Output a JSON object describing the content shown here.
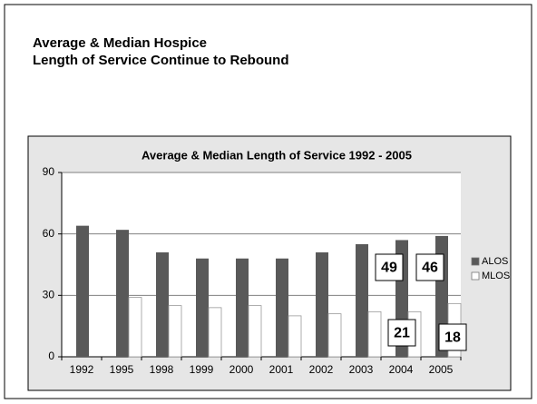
{
  "header": {
    "title_lines": [
      "Average & Median Hospice",
      "Length of Service Continue to Rebound"
    ]
  },
  "chart_data": {
    "type": "bar",
    "title": "Average & Median Length of Service 1992 - 2005",
    "categories": [
      "1992",
      "1995",
      "1998",
      "1999",
      "2000",
      "2001",
      "2002",
      "2003",
      "2004",
      "2005"
    ],
    "series": [
      {
        "name": "ALOS",
        "color": "#595959",
        "values": [
          64,
          62,
          51,
          48,
          48,
          48,
          51,
          55,
          57,
          59
        ]
      },
      {
        "name": "MLOS",
        "color": "#ffffff",
        "values": [
          null,
          29,
          25,
          24,
          25,
          20,
          21,
          22,
          22,
          26
        ]
      }
    ],
    "ylim": [
      0,
      90
    ],
    "yticks": [
      0,
      30,
      60,
      90
    ],
    "grid": true,
    "legend": "right",
    "annotations": [
      "49",
      "46",
      "21",
      "18"
    ]
  }
}
